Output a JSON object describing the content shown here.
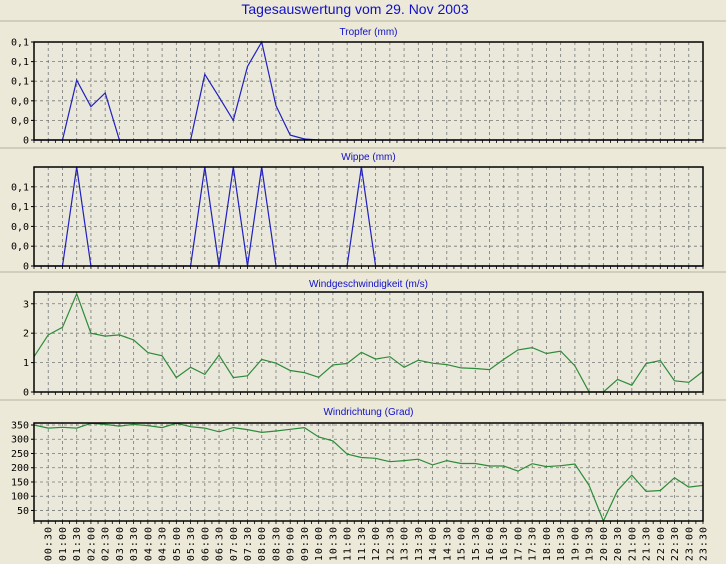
{
  "title": "Tagesauswertung vom 29. Nov 2003",
  "chart_data": [
    {
      "type": "line",
      "title": "Tropfer (mm)",
      "color": "#2020C0",
      "ylim": [
        0,
        0.1
      ],
      "yticks": [
        0,
        0.02,
        0.04,
        0.06,
        0.08,
        0.1
      ],
      "ytick_labels": [
        "0",
        "0,0",
        "0,0",
        "0,1",
        "0,1",
        "0,1"
      ],
      "values": [
        0,
        0,
        0,
        0.061,
        0.034,
        0.048,
        0,
        0,
        0,
        0,
        0,
        0,
        0.067,
        0.044,
        0.02,
        0.075,
        0.1,
        0.035,
        0.005,
        0.001,
        0,
        0,
        0,
        0,
        0,
        0,
        0,
        0,
        0,
        0,
        0,
        0,
        0,
        0,
        0,
        0,
        0,
        0,
        0,
        0,
        0,
        0,
        0,
        0,
        0,
        0,
        0,
        0
      ]
    },
    {
      "type": "line",
      "title": "Wippe (mm)",
      "color": "#2020C0",
      "ylim": [
        0,
        0.1
      ],
      "yticks": [
        0,
        0.02,
        0.04,
        0.06,
        0.08
      ],
      "ytick_labels": [
        "0",
        "0,0",
        "0,0",
        "0,1",
        "0,1"
      ],
      "values": [
        0,
        0,
        0,
        0.1,
        0,
        0,
        0,
        0,
        0,
        0,
        0,
        0,
        0.1,
        0,
        0.1,
        0,
        0.1,
        0,
        0,
        0,
        0,
        0,
        0,
        0.1,
        0,
        0,
        0,
        0,
        0,
        0,
        0,
        0,
        0,
        0,
        0,
        0,
        0,
        0,
        0,
        0,
        0,
        0,
        0,
        0,
        0,
        0,
        0,
        0
      ]
    },
    {
      "type": "line",
      "title": "Windgeschwindigkeit (m/s)",
      "color": "#2E8B3A",
      "ylim": [
        0,
        3.4
      ],
      "yticks": [
        0,
        1,
        2,
        3
      ],
      "ytick_labels": [
        "0",
        "1",
        "2",
        "3"
      ],
      "values": [
        1.2,
        1.94,
        2.2,
        3.34,
        2.0,
        1.9,
        1.94,
        1.77,
        1.34,
        1.23,
        0.49,
        0.84,
        0.6,
        1.25,
        0.49,
        0.55,
        1.11,
        0.98,
        0.73,
        0.66,
        0.5,
        0.92,
        0.97,
        1.35,
        1.12,
        1.2,
        0.84,
        1.08,
        0.98,
        0.93,
        0.82,
        0.8,
        0.76,
        1.11,
        1.43,
        1.51,
        1.31,
        1.39,
        0.89,
        0,
        0,
        0.43,
        0.23,
        0.97,
        1.07,
        0.38,
        0.33,
        0.7
      ]
    },
    {
      "type": "line",
      "title": "Windrichtung (Grad)",
      "color": "#2E8B3A",
      "ylim": [
        13,
        357
      ],
      "yticks": [
        50,
        100,
        150,
        200,
        250,
        300,
        350
      ],
      "ytick_labels": [
        "50",
        "100",
        "150",
        "200",
        "250",
        "300",
        "350"
      ],
      "values": [
        350,
        339,
        342,
        339,
        356,
        352,
        346,
        352,
        348,
        341,
        356,
        344,
        339,
        326,
        341,
        334,
        324,
        329,
        335,
        341,
        308,
        294,
        248,
        236,
        233,
        221,
        225,
        230,
        210,
        225,
        215,
        215,
        206,
        206,
        188,
        214,
        204,
        207,
        213,
        138,
        13,
        120,
        174,
        117,
        120,
        165,
        132,
        138
      ]
    }
  ],
  "x_tick_labels": [
    "00:30",
    "01:00",
    "01:30",
    "02:00",
    "02:30",
    "03:00",
    "03:30",
    "04:00",
    "04:30",
    "05:00",
    "05:30",
    "06:00",
    "06:30",
    "07:00",
    "07:30",
    "08:00",
    "08:30",
    "09:00",
    "09:30",
    "10:00",
    "10:30",
    "11:00",
    "11:30",
    "12:00",
    "12:30",
    "13:00",
    "13:30",
    "14:00",
    "14:30",
    "15:00",
    "15:30",
    "16:00",
    "16:30",
    "17:00",
    "17:30",
    "18:00",
    "18:30",
    "19:00",
    "19:30",
    "20:00",
    "20:30",
    "21:00",
    "21:30",
    "22:00",
    "22:30",
    "23:00",
    "23:30"
  ]
}
